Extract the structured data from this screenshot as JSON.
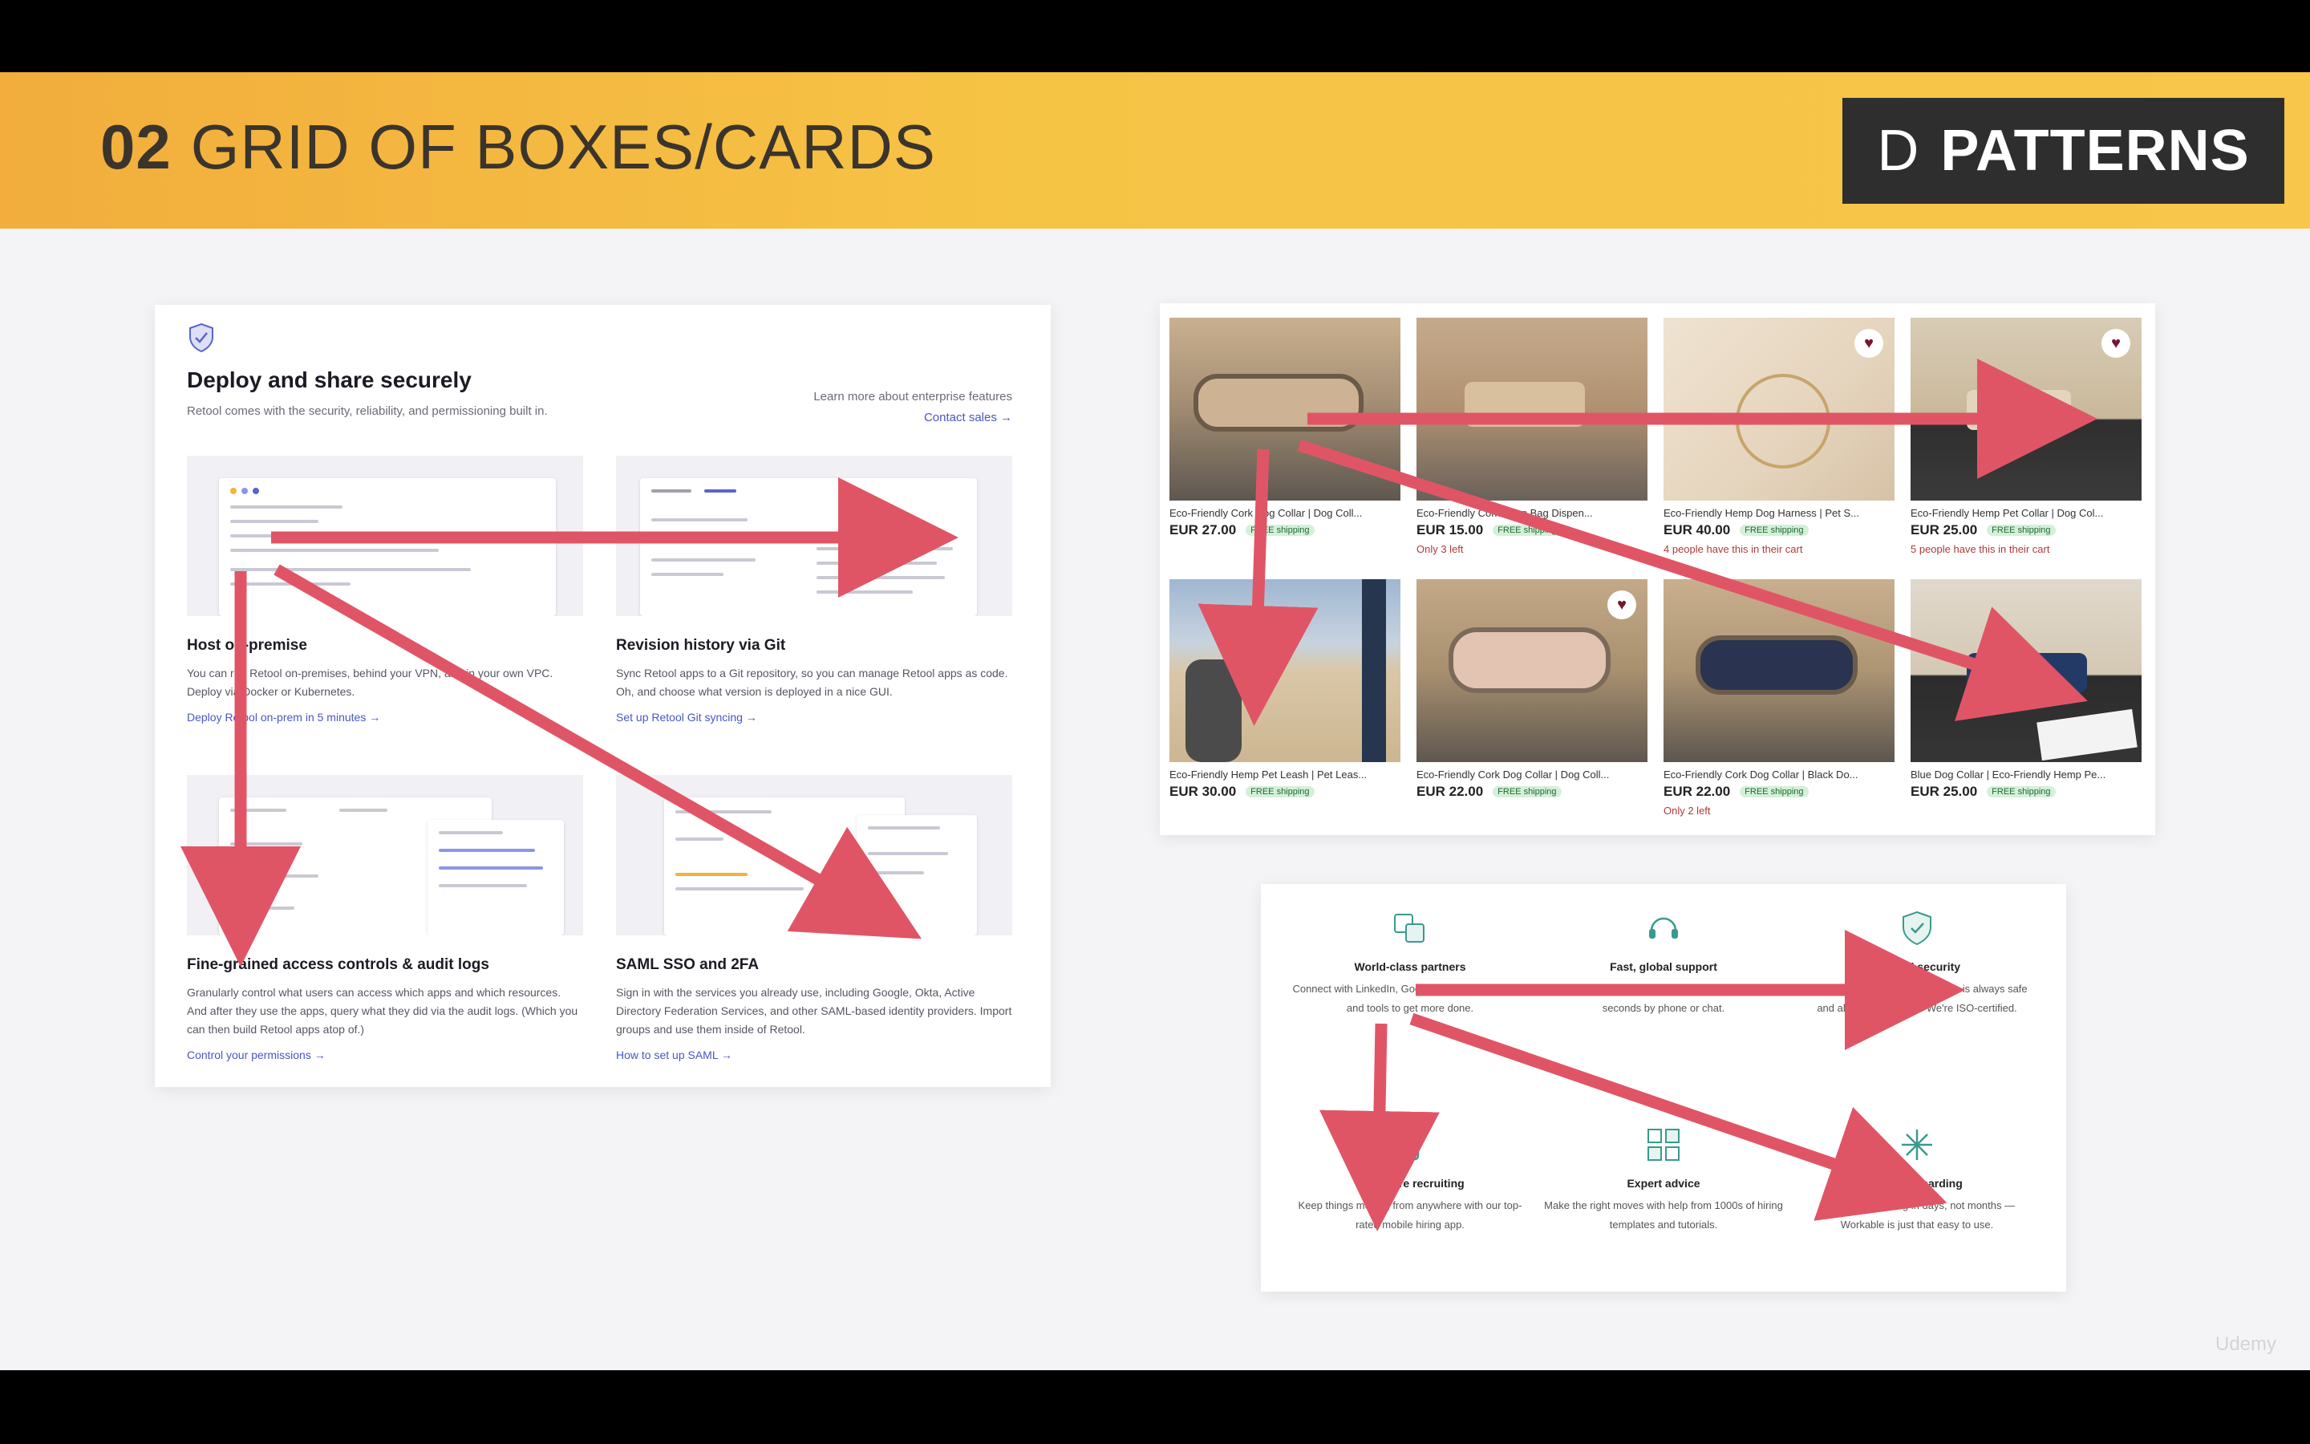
{
  "slide": {
    "number": "02",
    "title": "GRID OF BOXES/CARDS",
    "logo_letter": "D",
    "logo_text": "PATTERNS",
    "watermark": "Udemy",
    "arrow_color": "#e05566"
  },
  "panel_a": {
    "title": "Deploy and share securely",
    "subtitle": "Retool comes with the security, reliability, and permissioning built in.",
    "learn_more": "Learn more about enterprise features",
    "contact_sales": "Contact sales →",
    "cards": [
      {
        "title": "Host on-premise",
        "desc": "You can run Retool on-premises, behind your VPN, and in your own VPC. Deploy via Docker or Kubernetes.",
        "link": "Deploy Retool on-prem in 5 minutes →"
      },
      {
        "title": "Revision history via Git",
        "desc": "Sync Retool apps to a Git repository, so you can manage Retool apps as code. Oh, and choose what version is deployed in a nice GUI.",
        "link": "Set up Retool Git syncing →"
      },
      {
        "title": "Fine-grained access controls & audit logs",
        "desc": "Granularly control what users can access which apps and which resources. And after they use the apps, query what they did via the audit logs. (Which you can then build Retool apps atop of.)",
        "link": "Control your permissions →"
      },
      {
        "title": "SAML SSO and 2FA",
        "desc": "Sign in with the services you already use, including Google, Okta, Active Directory Federation Services, and other SAML-based identity providers. Import groups and use them inside of Retool.",
        "link": "How to set up SAML →"
      }
    ]
  },
  "panel_b": {
    "products": [
      {
        "name": "Eco-Friendly Cork Dog Collar | Dog Coll...",
        "price": "EUR 27.00",
        "shipping": "FREE shipping",
        "note": "",
        "favorite": false
      },
      {
        "name": "Eco-Friendly Cork Poop Bag Dispen...",
        "price": "EUR 15.00",
        "shipping": "FREE shipping",
        "note": "Only 3 left",
        "favorite": false
      },
      {
        "name": "Eco-Friendly Hemp Dog Harness | Pet S...",
        "price": "EUR 40.00",
        "shipping": "FREE shipping",
        "note": "4 people have this in their cart",
        "favorite": true
      },
      {
        "name": "Eco-Friendly Hemp Pet Collar | Dog Col...",
        "price": "EUR 25.00",
        "shipping": "FREE shipping",
        "note": "5 people have this in their cart",
        "favorite": true
      },
      {
        "name": "Eco-Friendly Hemp Pet Leash | Pet Leas...",
        "price": "EUR 30.00",
        "shipping": "FREE shipping",
        "note": "",
        "favorite": false
      },
      {
        "name": "Eco-Friendly Cork Dog Collar | Dog Coll...",
        "price": "EUR 22.00",
        "shipping": "FREE shipping",
        "note": "",
        "favorite": true
      },
      {
        "name": "Eco-Friendly Cork Dog Collar | Black Do...",
        "price": "EUR 22.00",
        "shipping": "FREE shipping",
        "note": "Only 2 left",
        "favorite": false
      },
      {
        "name": "Blue Dog Collar | Eco-Friendly Hemp Pe...",
        "price": "EUR 25.00",
        "shipping": "FREE shipping",
        "note": "",
        "favorite": false
      }
    ]
  },
  "panel_c": {
    "benefits": [
      {
        "title": "World-class partners",
        "desc": "Connect with LinkedIn, Google and 70+ other apps and tools to get more done.",
        "icon": "partners-icon"
      },
      {
        "title": "Fast, global support",
        "desc": "Reach our award-winning support team in about 25 seconds by phone or chat.",
        "icon": "headset-icon"
      },
      {
        "title": "Trusted security",
        "desc": "Sleep soundly knowing your data is always safe and always accessible. We're ISO-certified.",
        "icon": "shield-icon"
      },
      {
        "title": "Anywhere recruiting",
        "desc": "Keep things moving from anywhere with our top-rated mobile hiring app.",
        "icon": "phone-icon"
      },
      {
        "title": "Expert advice",
        "desc": "Make the right moves with help from 1000s of hiring templates and tutorials.",
        "icon": "templates-icon"
      },
      {
        "title": "Easy onboarding",
        "desc": "Get up and running in days, not months — Workable is just that easy to use.",
        "icon": "sparkle-icon"
      }
    ]
  }
}
